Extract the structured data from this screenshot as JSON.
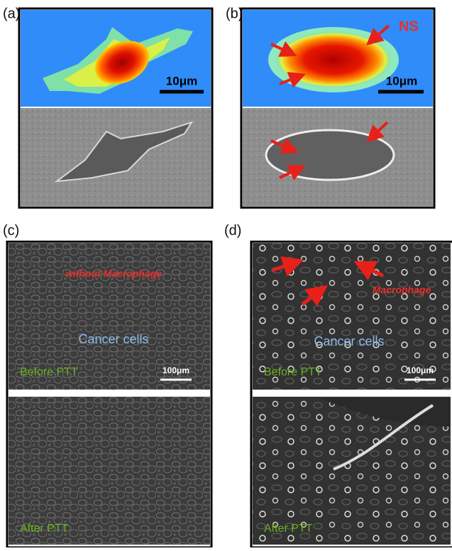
{
  "panels": [
    {
      "label": "(a)",
      "scale_bar": "10μm"
    },
    {
      "label": "(b)",
      "annotation": "NS",
      "scale_bar": "10μm"
    },
    {
      "label": "(c)",
      "annotation": "without Macrophage",
      "center_text": "Cancer cells",
      "top_caption": "Before PTT",
      "scale_bar": "100μm",
      "bottom_caption": "After PTT"
    },
    {
      "label": "(d)",
      "annotation": "Macrophage",
      "center_text": "Cancer cells",
      "top_caption": "Before PTT",
      "scale_bar": "100μm",
      "bottom_caption": "After PTT"
    }
  ]
}
